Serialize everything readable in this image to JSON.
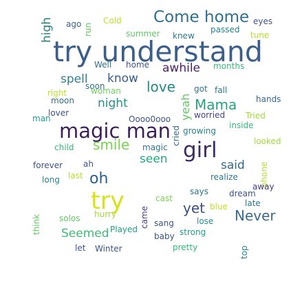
{
  "words": [
    {
      "id": "try-understand",
      "text": "try understand",
      "color": "#3b5f8a"
    },
    {
      "id": "come-home",
      "text": "Come home",
      "color": "#2f6f8e"
    },
    {
      "id": "magic-man",
      "text": "magic man",
      "color": "#3d1f5c"
    },
    {
      "id": "girl",
      "text": "girl",
      "color": "#3d2a66"
    },
    {
      "id": "try",
      "text": "try",
      "color": "#d8e21a"
    },
    {
      "id": "oh",
      "text": "oh",
      "color": "#2a5e8b"
    },
    {
      "id": "smile",
      "text": "smile",
      "color": "#7ad151"
    },
    {
      "id": "love",
      "text": "love",
      "color": "#1f8a8a"
    },
    {
      "id": "mama",
      "text": "Mama",
      "color": "#2aa07f"
    },
    {
      "id": "spell",
      "text": "spell",
      "color": "#2f7f8e"
    },
    {
      "id": "know",
      "text": "know",
      "color": "#355f8d"
    },
    {
      "id": "awhile",
      "text": "awhile",
      "color": "#4b1f6a"
    },
    {
      "id": "night",
      "text": "night",
      "color": "#21908c"
    },
    {
      "id": "seen",
      "text": "seen",
      "color": "#22a784"
    },
    {
      "id": "said",
      "text": "said",
      "color": "#31688e"
    },
    {
      "id": "yet",
      "text": "yet",
      "color": "#3b4e88"
    },
    {
      "id": "never",
      "text": "Never",
      "color": "#3a6a8c"
    },
    {
      "id": "seemed",
      "text": "Seemed",
      "color": "#3fbc73"
    },
    {
      "id": "high",
      "text": "high",
      "color": "#27817e"
    },
    {
      "id": "yeah",
      "text": "yeah",
      "color": "#5ec962"
    },
    {
      "id": "ago",
      "text": "ago",
      "color": "#3b5f8a"
    },
    {
      "id": "run",
      "text": "run",
      "color": "#5ec962"
    },
    {
      "id": "cold",
      "text": "Cold",
      "color": "#c2df23"
    },
    {
      "id": "summer",
      "text": "summer",
      "color": "#5ec962"
    },
    {
      "id": "knew",
      "text": "knew",
      "color": "#2a788e"
    },
    {
      "id": "passed",
      "text": "passed",
      "color": "#26828e"
    },
    {
      "id": "eyes",
      "text": "eyes",
      "color": "#3b528b"
    },
    {
      "id": "tune",
      "text": "tune",
      "color": "#b5de2b"
    },
    {
      "id": "well",
      "text": "Well",
      "color": "#2c728e"
    },
    {
      "id": "home",
      "text": "home",
      "color": "#3b528b"
    },
    {
      "id": "months",
      "text": "months",
      "color": "#35b779"
    },
    {
      "id": "soon",
      "text": "soon",
      "color": "#2c728e"
    },
    {
      "id": "woman",
      "text": "woman",
      "color": "#6ece58"
    },
    {
      "id": "right",
      "text": "right",
      "color": "#c2df23"
    },
    {
      "id": "moon",
      "text": "moon",
      "color": "#2c728e"
    },
    {
      "id": "got",
      "text": "got",
      "color": "#2c728e"
    },
    {
      "id": "fall",
      "text": "fall",
      "color": "#2a788e"
    },
    {
      "id": "hands",
      "text": "hands",
      "color": "#31688e"
    },
    {
      "id": "worried",
      "text": "worried",
      "color": "#414487"
    },
    {
      "id": "tried",
      "text": "Tried",
      "color": "#a0da39"
    },
    {
      "id": "lover",
      "text": "lover",
      "color": "#3b528b"
    },
    {
      "id": "man",
      "text": "man",
      "color": "#1f9e89"
    },
    {
      "id": "oooooooo",
      "text": "Oooo0ooo",
      "color": "#3b528b"
    },
    {
      "id": "inside",
      "text": "inside",
      "color": "#35b779"
    },
    {
      "id": "cried",
      "text": "cried",
      "color": "#31688e"
    },
    {
      "id": "growing",
      "text": "growing",
      "color": "#26828e"
    },
    {
      "id": "looked",
      "text": "looked",
      "color": "#a0da39"
    },
    {
      "id": "child",
      "text": "child",
      "color": "#35b779"
    },
    {
      "id": "magic",
      "text": "magic",
      "color": "#2c728e"
    },
    {
      "id": "forever",
      "text": "forever",
      "color": "#3b528b"
    },
    {
      "id": "ah",
      "text": "ah",
      "color": "#3b528b"
    },
    {
      "id": "phone",
      "text": "phone",
      "color": "#b5de2b"
    },
    {
      "id": "long",
      "text": "long",
      "color": "#26828e"
    },
    {
      "id": "last",
      "text": "last",
      "color": "#b5de2b"
    },
    {
      "id": "realize",
      "text": "realize",
      "color": "#2a788e"
    },
    {
      "id": "away",
      "text": "away",
      "color": "#443a83"
    },
    {
      "id": "says",
      "text": "says",
      "color": "#2c728e"
    },
    {
      "id": "dream",
      "text": "dream",
      "color": "#3b528b"
    },
    {
      "id": "cast",
      "text": "cast",
      "color": "#7ad151"
    },
    {
      "id": "blue",
      "text": "blue",
      "color": "#c2df23"
    },
    {
      "id": "late",
      "text": "late",
      "color": "#2a788e"
    },
    {
      "id": "think",
      "text": "think",
      "color": "#5ec962"
    },
    {
      "id": "solos",
      "text": "solos",
      "color": "#5ec962"
    },
    {
      "id": "hurry",
      "text": "hurry",
      "color": "#a0da39"
    },
    {
      "id": "came",
      "text": "came",
      "color": "#414487"
    },
    {
      "id": "lose",
      "text": "lose",
      "color": "#21908c"
    },
    {
      "id": "played",
      "text": "Played",
      "color": "#1f9e89"
    },
    {
      "id": "sang",
      "text": "sang",
      "color": "#3b528b"
    },
    {
      "id": "strong",
      "text": "strong",
      "color": "#1f9e89"
    },
    {
      "id": "baby",
      "text": "baby",
      "color": "#3b528b"
    },
    {
      "id": "let",
      "text": "let",
      "color": "#3b528b"
    },
    {
      "id": "winter",
      "text": "Winter",
      "color": "#3b528b"
    },
    {
      "id": "pretty",
      "text": "pretty",
      "color": "#35b779"
    },
    {
      "id": "top",
      "text": "top",
      "color": "#26828e"
    }
  ]
}
